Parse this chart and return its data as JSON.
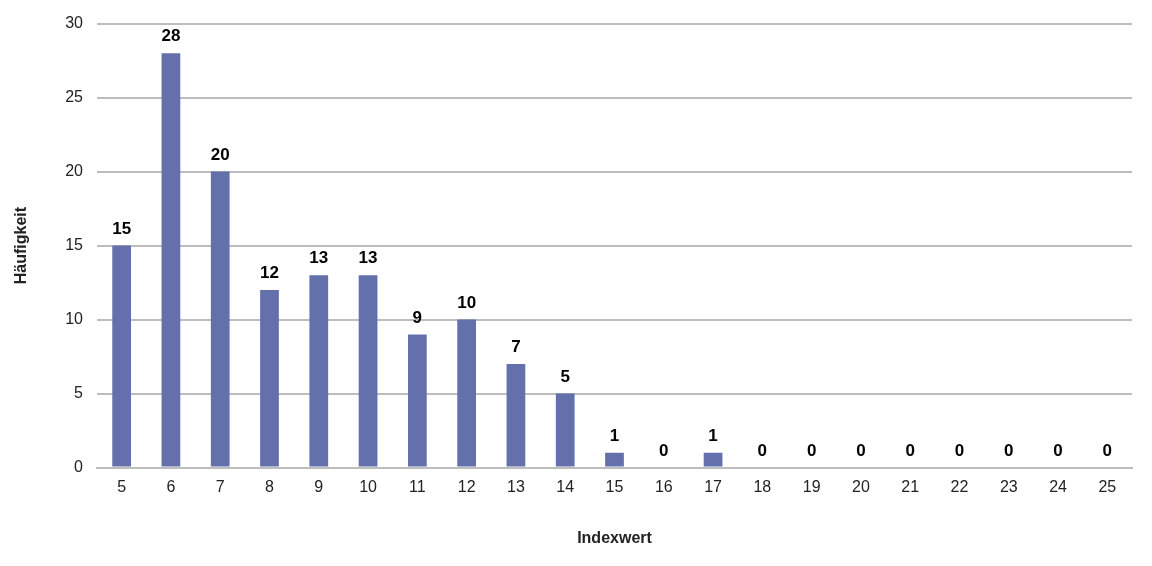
{
  "chart_data": {
    "type": "bar",
    "xlabel": "Indexwert",
    "ylabel": "Häufigkeit",
    "categories": [
      "5",
      "6",
      "7",
      "8",
      "9",
      "10",
      "11",
      "12",
      "13",
      "14",
      "15",
      "16",
      "17",
      "18",
      "19",
      "20",
      "21",
      "22",
      "23",
      "24",
      "25"
    ],
    "values": [
      15,
      28,
      20,
      12,
      13,
      13,
      9,
      10,
      7,
      5,
      1,
      0,
      1,
      0,
      0,
      0,
      0,
      0,
      0,
      0,
      0
    ],
    "color": "#6370ac",
    "ylim": [
      0,
      30
    ],
    "yticks": [
      0,
      5,
      10,
      15,
      20,
      25,
      30
    ],
    "grid": "y",
    "legend": false,
    "data_labels": true
  }
}
